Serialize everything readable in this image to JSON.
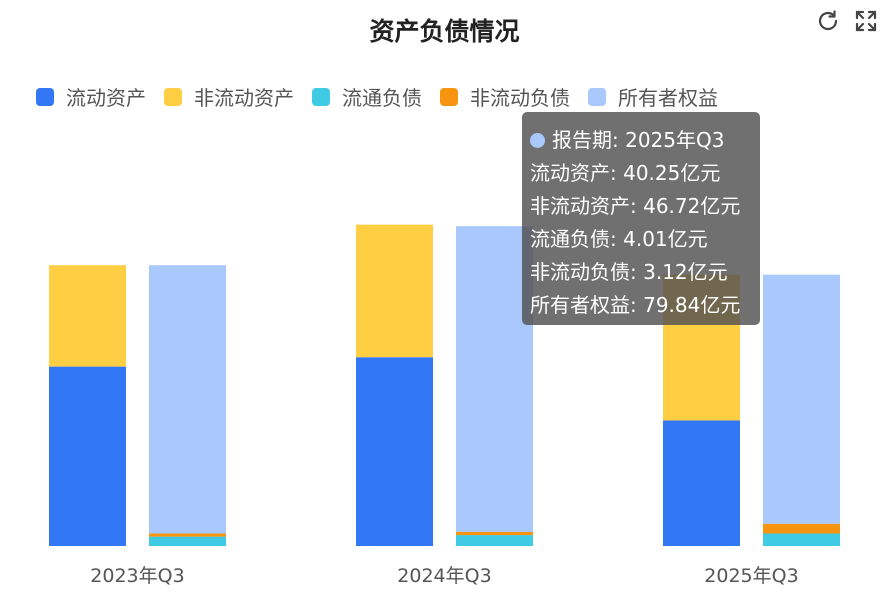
{
  "chart_data": {
    "type": "bar",
    "title": "资产负债情况",
    "categories": [
      "2023年Q3",
      "2024年Q3",
      "2025年Q3"
    ],
    "series": [
      {
        "name": "流动资产",
        "stack": "assets",
        "color": "#3278F6",
        "values": [
          57.5,
          60.5,
          40.25
        ]
      },
      {
        "name": "非流动资产",
        "stack": "assets",
        "color": "#FFCE42",
        "values": [
          32.5,
          42.5,
          46.72
        ]
      },
      {
        "name": "流通负债",
        "stack": "liabilities_equity",
        "color": "#3FCBE4",
        "values": [
          3.0,
          3.5,
          4.01
        ]
      },
      {
        "name": "非流动负债",
        "stack": "liabilities_equity",
        "color": "#F79410",
        "values": [
          1.0,
          1.0,
          3.12
        ]
      },
      {
        "name": "所有者权益",
        "stack": "liabilities_equity",
        "color": "#A9C8FC",
        "values": [
          86.0,
          98.0,
          79.84
        ]
      }
    ],
    "ylim": [
      0,
      125
    ],
    "legend_position": "top-left",
    "grid": false
  },
  "tooltip": {
    "header_label": "报告期",
    "header_value": "2025年Q3",
    "unit": "亿元",
    "dot_color": "#A9C8FC",
    "rows": [
      {
        "label": "流动资产",
        "value": "40.25亿元"
      },
      {
        "label": "非流动资产",
        "value": "46.72亿元"
      },
      {
        "label": "流通负债",
        "value": "4.01亿元"
      },
      {
        "label": "非流动负债",
        "value": "3.12亿元"
      },
      {
        "label": "所有者权益",
        "value": "79.84亿元"
      }
    ]
  },
  "toolbar": {
    "refresh_icon": "refresh-icon",
    "fullscreen_icon": "fullscreen-icon"
  }
}
